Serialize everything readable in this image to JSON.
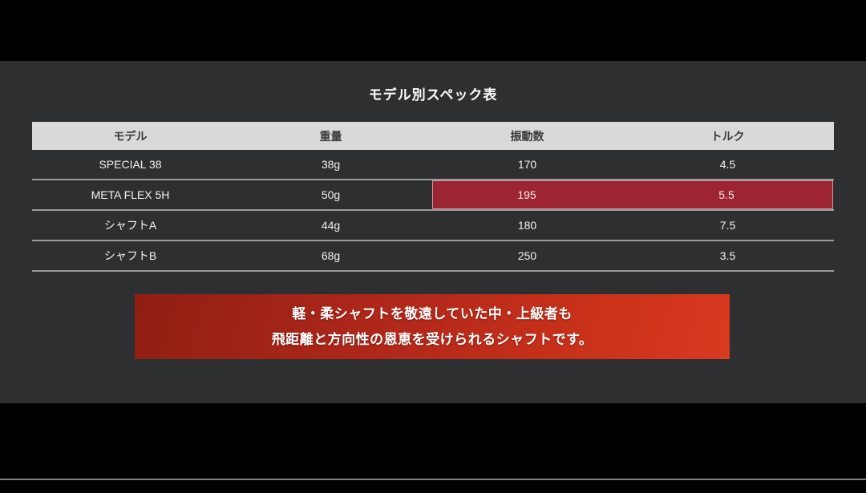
{
  "title": "モデル別スペック表",
  "table": {
    "headers": [
      "モデル",
      "重量",
      "振動数",
      "トルク"
    ],
    "rows": [
      {
        "cells": [
          "SPECIAL 38",
          "38g",
          "170",
          "4.5"
        ],
        "highlight": false
      },
      {
        "cells": [
          "META FLEX 5H",
          "50g",
          "195",
          "5.5"
        ],
        "highlight": true
      },
      {
        "cells": [
          "シャフトA",
          "44g",
          "180",
          "7.5"
        ],
        "highlight": false
      },
      {
        "cells": [
          "シャフトB",
          "68g",
          "250",
          "3.5"
        ],
        "highlight": false
      }
    ]
  },
  "banner": {
    "line1": "軽・柔シャフトを敬遠していた中・上級者も",
    "line2": "飛距離と方向性の恩恵を受けられるシャフトです。"
  },
  "chart_data": {
    "type": "table",
    "title": "モデル別スペック表",
    "columns": [
      "モデル",
      "重量",
      "振動数",
      "トルク"
    ],
    "rows": [
      [
        "SPECIAL 38",
        "38g",
        "170",
        "4.5"
      ],
      [
        "META FLEX 5H",
        "50g",
        "195",
        "5.5"
      ],
      [
        "シャフトA",
        "44g",
        "180",
        "7.5"
      ],
      [
        "シャフトB",
        "68g",
        "250",
        "3.5"
      ]
    ],
    "highlighted_row": "META FLEX 5H",
    "highlighted_columns": [
      "振動数",
      "トルク"
    ],
    "footnote": "軽・柔シャフトを敬遠していた中・上級者も 飛距離と方向性の恩恵を受けられるシャフトです。"
  },
  "colors": {
    "content_bg": "#2e2f31",
    "header_bg": "#d9d9d9",
    "accent_red": "#9d2431",
    "banner_red_dark": "#8f1f13",
    "banner_red_bright": "#d93a20",
    "letterbox": "#000000"
  }
}
